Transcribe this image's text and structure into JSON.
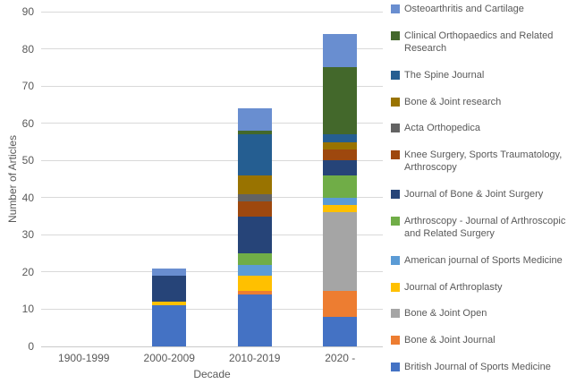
{
  "chart_data": {
    "type": "bar",
    "stacked": true,
    "title": "",
    "xlabel": "Decade",
    "ylabel": "Number of Articles",
    "ylim": [
      0,
      90
    ],
    "yticks": [
      0,
      10,
      20,
      30,
      40,
      50,
      60,
      70,
      80,
      90
    ],
    "grid": true,
    "legend_position": "right",
    "legend_order": "reversed",
    "categories": [
      "1900-1999",
      "2000-2009",
      "2010-2019",
      "2020 -"
    ],
    "series": [
      {
        "name": "British Journal of Sports Medicine",
        "color": "#4472C4",
        "values": [
          0,
          11,
          14,
          8
        ]
      },
      {
        "name": "Bone & Joint Journal",
        "color": "#ED7D31",
        "values": [
          0,
          0,
          1,
          7
        ]
      },
      {
        "name": "Bone & Joint Open",
        "color": "#A5A5A5",
        "values": [
          0,
          0,
          0,
          21
        ]
      },
      {
        "name": "Journal of Arthroplasty",
        "color": "#FFC000",
        "values": [
          0,
          1,
          4,
          2
        ]
      },
      {
        "name": "American journal of Sports Medicine",
        "color": "#5B9BD5",
        "values": [
          0,
          0,
          3,
          2
        ]
      },
      {
        "name": "Arthroscopy - Journal of Arthroscopic and Related Surgery",
        "color": "#70AD47",
        "values": [
          0,
          0,
          3,
          6
        ]
      },
      {
        "name": "Journal of Bone & Joint Surgery",
        "color": "#264478",
        "values": [
          0,
          7,
          10,
          4
        ]
      },
      {
        "name": "Knee Surgery, Sports Traumatology, Arthroscopy",
        "color": "#9E480E",
        "values": [
          0,
          0,
          4,
          3
        ]
      },
      {
        "name": "Acta Orthopedica",
        "color": "#636363",
        "values": [
          0,
          0,
          2,
          0
        ]
      },
      {
        "name": "Bone & Joint research",
        "color": "#997300",
        "values": [
          0,
          0,
          5,
          2
        ]
      },
      {
        "name": "The Spine Journal",
        "color": "#255E91",
        "values": [
          0,
          0,
          11,
          2
        ]
      },
      {
        "name": "Clinical Orthopaedics and Related Research",
        "color": "#43682B",
        "values": [
          0,
          0,
          1,
          18
        ]
      },
      {
        "name": "Osteoarthritis and Cartilage",
        "color": "#698ED0",
        "values": [
          0,
          2,
          6,
          9
        ]
      }
    ],
    "style": {
      "text_color": "#595959",
      "gridline_color": "#D9D9D9",
      "background": "#FFFFFF"
    }
  }
}
